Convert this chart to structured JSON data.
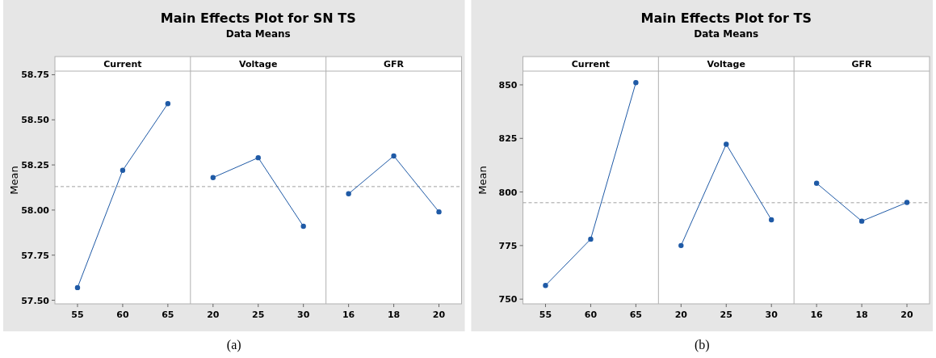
{
  "chart_data": [
    {
      "type": "line",
      "title": "Main Effects Plot for SN TS",
      "subtitle": "Data Means",
      "ylabel": "Mean",
      "annotations": [
        "(a)",
        "Current",
        "Voltage",
        "GFR"
      ],
      "categories": [
        "55",
        "60",
        "65",
        "20",
        "25",
        "30",
        "16",
        "18",
        "20"
      ],
      "series": [
        {
          "color": "#1f5aa6",
          "values": [
            57.57,
            58.22,
            58.59,
            null,
            null,
            null,
            null,
            null,
            null
          ]
        },
        {
          "color": "#1f5aa6",
          "values": [
            null,
            null,
            null,
            58.18,
            58.29,
            57.91,
            null,
            null,
            null
          ]
        },
        {
          "color": "#1f5aa6",
          "values": [
            null,
            null,
            null,
            null,
            null,
            null,
            58.09,
            58.3,
            57.99
          ]
        }
      ],
      "ylim": [
        57.48,
        58.77
      ],
      "yticks": [
        {
          "value": 57.5,
          "label": "57.50"
        },
        {
          "value": 57.75,
          "label": "57.75"
        },
        {
          "value": 58,
          "label": "58.00"
        },
        {
          "value": 58.25,
          "label": "58.25"
        },
        {
          "value": 58.5,
          "label": "58.50"
        },
        {
          "value": 58.75,
          "label": "58.75"
        }
      ],
      "ref_lines": [
        {
          "axis": "y",
          "value": 58.13,
          "color": "#a0a0a0",
          "line_style": "dashed"
        }
      ],
      "grid": false,
      "marker": "circle",
      "line_style": "solid"
    },
    {
      "type": "line",
      "title": "Main Effects Plot for TS",
      "subtitle": "Data Means",
      "ylabel": "Mean",
      "annotations": [
        "(b)",
        "Current",
        "Voltage",
        "GFR"
      ],
      "categories": [
        "55",
        "60",
        "65",
        "20",
        "25",
        "30",
        "16",
        "18",
        "20"
      ],
      "series": [
        {
          "color": "#1f5aa6",
          "values": [
            756.4,
            778,
            851,
            null,
            null,
            null,
            null,
            null,
            null
          ]
        },
        {
          "color": "#1f5aa6",
          "values": [
            null,
            null,
            null,
            775,
            822.3,
            787,
            null,
            null,
            null
          ]
        },
        {
          "color": "#1f5aa6",
          "values": [
            null,
            null,
            null,
            null,
            null,
            null,
            804.1,
            786.4,
            795.1
          ]
        }
      ],
      "ylim": [
        747.8,
        856.4
      ],
      "yticks": [
        750,
        775,
        800,
        825,
        850
      ],
      "ref_lines": [
        {
          "axis": "y",
          "value": 795,
          "color": "#a0a0a0",
          "line_style": "dashed"
        }
      ],
      "grid": false,
      "marker": "circle",
      "line_style": "solid"
    }
  ]
}
